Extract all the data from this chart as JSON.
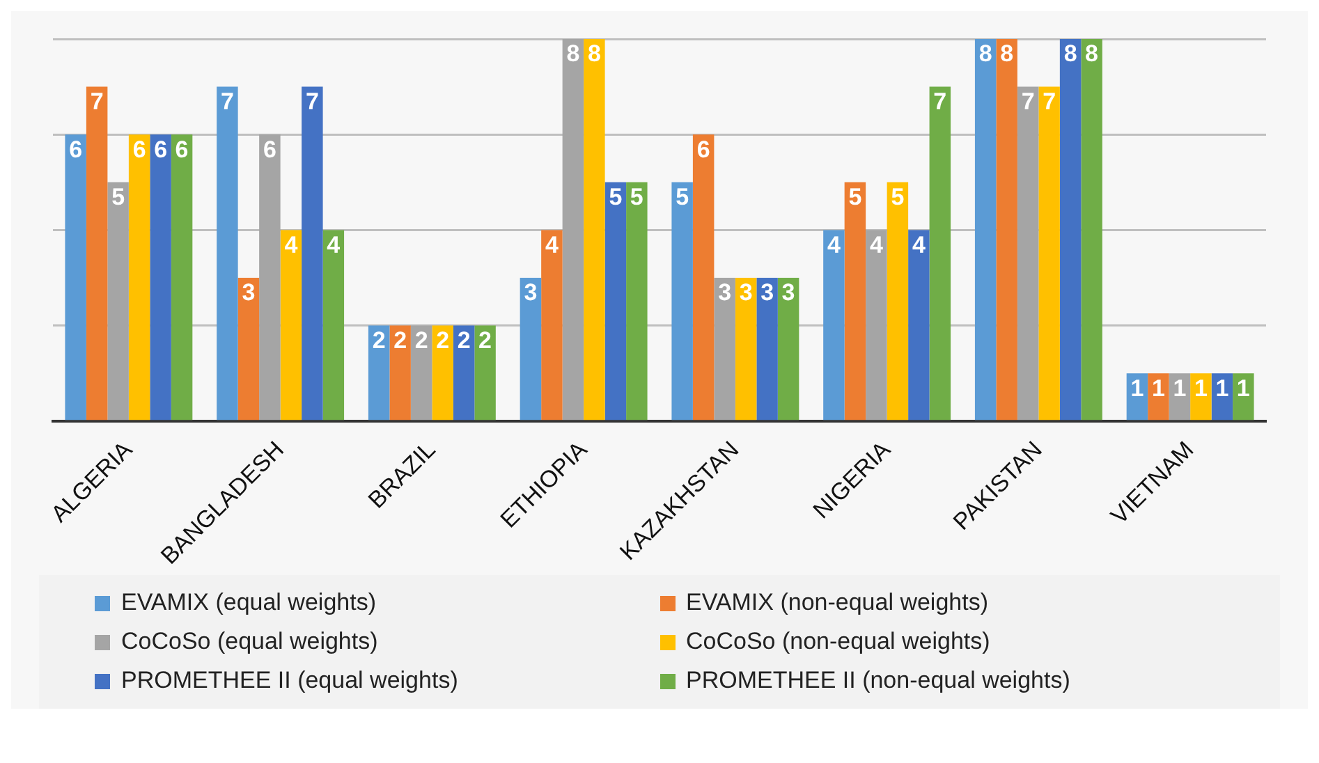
{
  "chart_data": {
    "type": "bar",
    "categories": [
      "ALGERIA",
      "BANGLADESH",
      "BRAZIL",
      "ETHIOPIA",
      "KAZAKHSTAN",
      "NIGERIA",
      "PAKISTAN",
      "VIETNAM"
    ],
    "series": [
      {
        "name": "EVAMIX (equal weights)",
        "color": "#5b9bd5",
        "values": [
          6,
          7,
          2,
          3,
          5,
          4,
          8,
          1
        ]
      },
      {
        "name": "EVAMIX (non-equal weights)",
        "color": "#ed7d31",
        "values": [
          7,
          3,
          2,
          4,
          6,
          5,
          8,
          1
        ]
      },
      {
        "name": "CoCoSo (equal weights)",
        "color": "#a5a5a5",
        "values": [
          5,
          6,
          2,
          8,
          3,
          4,
          7,
          1
        ]
      },
      {
        "name": "CoCoSo (non-equal weights)",
        "color": "#ffc000",
        "values": [
          6,
          4,
          2,
          8,
          3,
          5,
          7,
          1
        ]
      },
      {
        "name": "PROMETHEE II (equal weights)",
        "color": "#4472c4",
        "values": [
          6,
          7,
          2,
          5,
          3,
          4,
          8,
          1
        ]
      },
      {
        "name": "PROMETHEE II (non-equal weights)",
        "color": "#70ad47",
        "values": [
          6,
          4,
          2,
          5,
          3,
          7,
          8,
          1
        ]
      }
    ],
    "ylim": [
      0,
      8
    ],
    "yticks": [
      {
        "value": 0,
        "label": null
      },
      {
        "value": 2,
        "label": null
      },
      {
        "value": 4,
        "label": null
      },
      {
        "value": 6,
        "label": null
      },
      {
        "value": 8,
        "label": null
      }
    ],
    "grid": "y",
    "tick_labels": "x",
    "legend": "bottom",
    "data_labels": true
  }
}
